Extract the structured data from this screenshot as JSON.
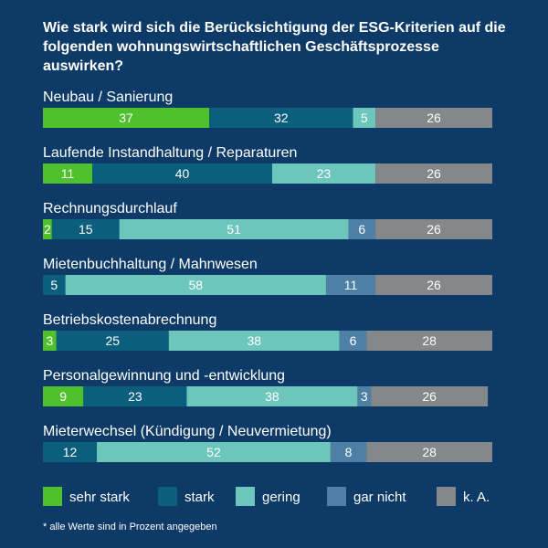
{
  "chart_data": {
    "type": "bar",
    "orientation": "horizontal-stacked",
    "title": "Wie stark wird sich die Berücksichtigung der ESG-Kriterien auf die folgenden wohnungswirtschaftlichen Geschäftsprozesse auswirken?",
    "categories": [
      "Neubau / Sanierung",
      "Laufende Instandhaltung / Reparaturen",
      "Rechnungsdurchlauf",
      "Mietenbuchhaltung / Mahnwesen",
      "Betriebskostenabrechnung",
      "Personalgewinnung und  -entwicklung",
      "Mieterwechsel (Kündigung / Neuvermietung)"
    ],
    "series": [
      {
        "name": "sehr stark",
        "color": "#4fc12c",
        "values": [
          37,
          11,
          2,
          0,
          3,
          9,
          0
        ]
      },
      {
        "name": "stark",
        "color": "#0b5e7c",
        "values": [
          32,
          40,
          15,
          5,
          25,
          23,
          12
        ]
      },
      {
        "name": "gering",
        "color": "#6cc6bb",
        "values": [
          5,
          23,
          51,
          58,
          38,
          38,
          52
        ]
      },
      {
        "name": "gar nicht",
        "color": "#4e7fa4",
        "values": [
          0,
          0,
          6,
          11,
          6,
          3,
          8
        ]
      },
      {
        "name": "k. A.",
        "color": "#848889",
        "values": [
          26,
          26,
          26,
          26,
          28,
          26,
          28
        ]
      }
    ],
    "xlim": [
      0,
      100
    ],
    "legend_position": "bottom",
    "footnote": "* alle Werte sind in Prozent angegeben"
  }
}
